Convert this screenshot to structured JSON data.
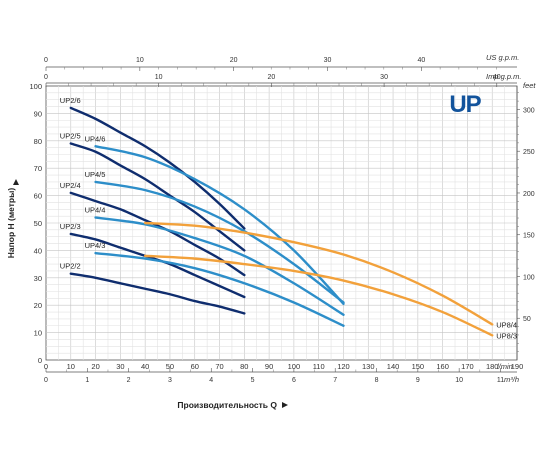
{
  "chart_data": {
    "type": "line",
    "logo": "UP",
    "ylabel": "Напор H (метры)",
    "ylabel_right_unit": "feet",
    "xlabel": "Производительность Q",
    "x_units": {
      "lpm": "l/min",
      "m3h": "m³/h",
      "usgpm": "US g.p.m.",
      "impgpm": "Imp g.p.m."
    },
    "xlim": [
      0,
      190
    ],
    "ylim": [
      0,
      100
    ],
    "grid": true,
    "x_ticks_lpm": [
      0,
      10,
      20,
      30,
      40,
      50,
      60,
      70,
      80,
      90,
      100,
      110,
      120,
      130,
      140,
      150,
      160,
      170,
      180,
      190
    ],
    "x_ticks_m3h": [
      0,
      1,
      2,
      3,
      4,
      5,
      6,
      7,
      8,
      9,
      10,
      11
    ],
    "x_ticks_usgpm": [
      0,
      10,
      20,
      30,
      40
    ],
    "x_ticks_impgpm": [
      0,
      10,
      20,
      30,
      40
    ],
    "y_ticks_m": [
      10,
      20,
      30,
      40,
      50,
      60,
      70,
      80,
      90,
      100
    ],
    "y_ticks_ft": [
      50,
      100,
      150,
      200,
      250,
      300
    ],
    "series": [
      {
        "name": "UP2/6",
        "color": "#0f2d6e",
        "label_at": "start",
        "x": [
          10,
          20,
          30,
          40,
          50,
          60,
          70,
          80
        ],
        "y": [
          92,
          88,
          83,
          78,
          72,
          65,
          57,
          48
        ]
      },
      {
        "name": "UP2/5",
        "color": "#0f2d6e",
        "label_at": "start",
        "x": [
          10,
          20,
          30,
          40,
          50,
          60,
          70,
          80
        ],
        "y": [
          79,
          76,
          71,
          66,
          60,
          54,
          47,
          40
        ]
      },
      {
        "name": "UP2/4",
        "color": "#0f2d6e",
        "label_at": "start",
        "x": [
          10,
          20,
          30,
          40,
          50,
          60,
          70,
          80
        ],
        "y": [
          61,
          58,
          55,
          51,
          47,
          42,
          37,
          31
        ]
      },
      {
        "name": "UP2/3",
        "color": "#0f2d6e",
        "label_at": "start",
        "x": [
          10,
          20,
          30,
          40,
          50,
          60,
          70,
          80
        ],
        "y": [
          46,
          44,
          41,
          38,
          35,
          31,
          27,
          23
        ]
      },
      {
        "name": "UP2/2",
        "color": "#0f2d6e",
        "label_at": "start",
        "x": [
          10,
          20,
          30,
          40,
          50,
          60,
          70,
          80
        ],
        "y": [
          31.5,
          30,
          28,
          26,
          24,
          21.5,
          19.5,
          17
        ]
      },
      {
        "name": "UP4/6",
        "color": "#2d8ec9",
        "label_at": "start",
        "x": [
          20,
          40,
          60,
          80,
          100,
          120
        ],
        "y": [
          78,
          74,
          66,
          55,
          40,
          20.5
        ]
      },
      {
        "name": "UP4/5",
        "color": "#2d8ec9",
        "label_at": "start",
        "x": [
          20,
          40,
          60,
          80,
          100,
          120
        ],
        "y": [
          65,
          62,
          56,
          47,
          35,
          21
        ]
      },
      {
        "name": "UP4/4",
        "color": "#2d8ec9",
        "label_at": "start",
        "x": [
          20,
          40,
          60,
          80,
          100,
          120
        ],
        "y": [
          52,
          49.5,
          44.5,
          38,
          28,
          16.5
        ]
      },
      {
        "name": "UP4/3",
        "color": "#2d8ec9",
        "label_at": "start",
        "x": [
          20,
          40,
          60,
          80,
          100,
          120
        ],
        "y": [
          39,
          37,
          33.5,
          28,
          21,
          12.5
        ]
      },
      {
        "name": "UP8/4",
        "color": "#f2a13b",
        "label_at": "end",
        "x": [
          40,
          60,
          80,
          100,
          120,
          140,
          160,
          180
        ],
        "y": [
          50,
          49,
          46.5,
          43,
          38.5,
          32,
          23.5,
          13
        ]
      },
      {
        "name": "UP8/3",
        "color": "#f2a13b",
        "label_at": "end",
        "x": [
          40,
          60,
          80,
          100,
          120,
          140,
          160,
          180
        ],
        "y": [
          38,
          37,
          35,
          32.5,
          29,
          24,
          17.5,
          9
        ]
      }
    ]
  }
}
